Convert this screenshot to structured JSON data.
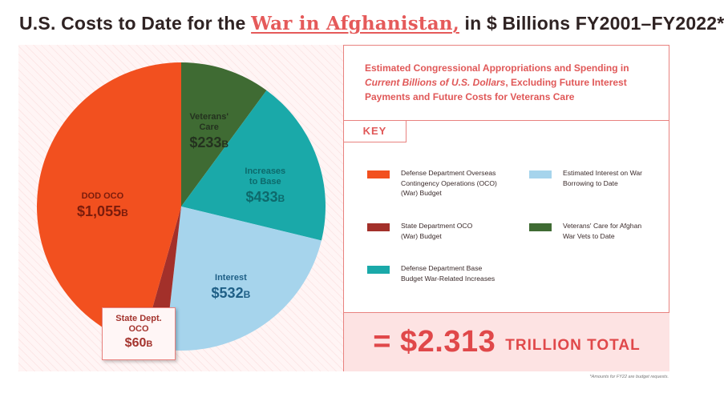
{
  "title": {
    "prefix": "U.S. Costs to Date for the ",
    "highlight": "War in Afghanistan,",
    "suffix": " in $ Billions FY2001–FY2022*"
  },
  "description": {
    "line1": "Estimated Congressional Appropriations and Spending in",
    "italic": "Current Billions of U.S. Dollars",
    "line2_rest": ", Excluding Future Interest",
    "line3": "Payments and Future Costs for Veterans Care"
  },
  "key_label": "KEY",
  "legend": [
    {
      "label_lines": [
        "Defense Department Overseas",
        "Contingency Operations (OCO)",
        "(War) Budget"
      ],
      "color": "#f2501f"
    },
    {
      "label_lines": [
        "State Department OCO",
        "(War) Budget"
      ],
      "color": "#a3302a"
    },
    {
      "label_lines": [
        "Defense Department Base",
        "Budget War-Related Increases"
      ],
      "color": "#1aa9a9"
    },
    {
      "label_lines": [
        "Estimated Interest on War",
        "Borrowing to Date"
      ],
      "color": "#a6d4ec"
    },
    {
      "label_lines": [
        "Veterans' Care for Afghan",
        "War Vets to Date"
      ],
      "color": "#3f6b33"
    }
  ],
  "total": {
    "value": "= $2.313",
    "unit": "TRILLION TOTAL"
  },
  "footnote": "*Amounts for FY22 are budget requests.",
  "chart_data": {
    "type": "pie",
    "title": "U.S. Costs to Date for the War in Afghanistan, in $ Billions FY2001–FY2022*",
    "units": "$ Billions",
    "total_label": "$2.313 TRILLION TOTAL",
    "slices": [
      {
        "label_lines": [
          "Veterans'",
          "Care"
        ],
        "amount": "$233",
        "unit": "B",
        "value": 233,
        "color": "#3f6b33",
        "text_color": "#24321f"
      },
      {
        "label_lines": [
          "Increases",
          "to Base"
        ],
        "amount": "$433",
        "unit": "B",
        "value": 433,
        "color": "#1aa9a9",
        "text_color": "#0d6a6c"
      },
      {
        "label_lines": [
          "Interest"
        ],
        "amount": "$532",
        "unit": "B",
        "value": 532,
        "color": "#a6d4ec",
        "text_color": "#1f5f86"
      },
      {
        "label_lines": [
          "State Dept.",
          "OCO"
        ],
        "amount": "$60",
        "unit": "B",
        "value": 60,
        "color": "#a3302a",
        "text_color": "#a4342e"
      },
      {
        "label_lines": [
          "DOD OCO"
        ],
        "amount": "$1,055",
        "unit": "B",
        "value": 1055,
        "color": "#f2501f",
        "text_color": "#7a1c0c"
      }
    ]
  }
}
